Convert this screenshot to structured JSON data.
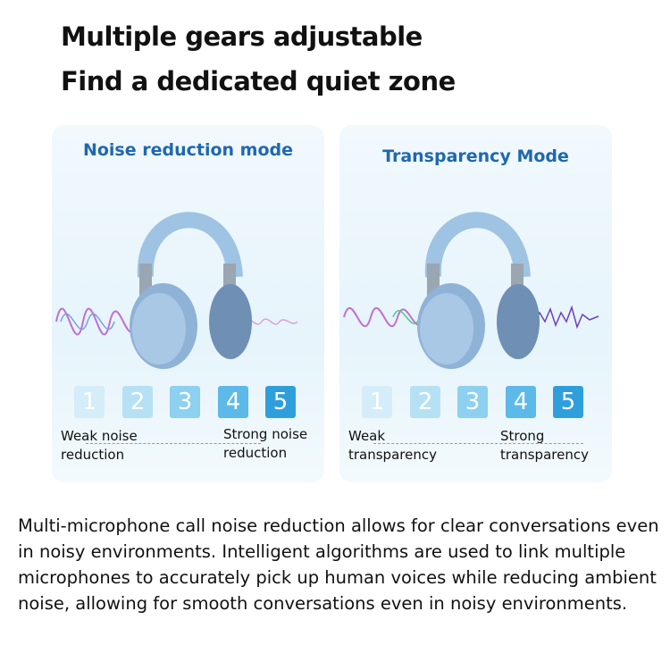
{
  "headline": {
    "line1": "Multiple gears adjustable",
    "line2": "Find a dedicated quiet zone"
  },
  "panels": [
    {
      "title": "Noise reduction mode",
      "levels": [
        "1",
        "2",
        "3",
        "4",
        "5"
      ],
      "weak_label": "Weak noise reduction",
      "strong_label": "Strong noise reduction"
    },
    {
      "title": "Transparency Mode",
      "levels": [
        "1",
        "2",
        "3",
        "4",
        "5"
      ],
      "weak_label": "Weak transparency",
      "strong_label": "Strong transparency"
    }
  ],
  "level_colors": [
    "#d4edf8",
    "#b6e1f5",
    "#8dd0ef",
    "#5cb9e8",
    "#2f9fdc"
  ],
  "description": "Multi-microphone call noise reduction allows for clear conversations even in noisy environments. Intelligent algorithms are used to link multiple microphones to accurately pick up human voices while reducing ambient noise, allowing for smooth conversations even in noisy environments."
}
